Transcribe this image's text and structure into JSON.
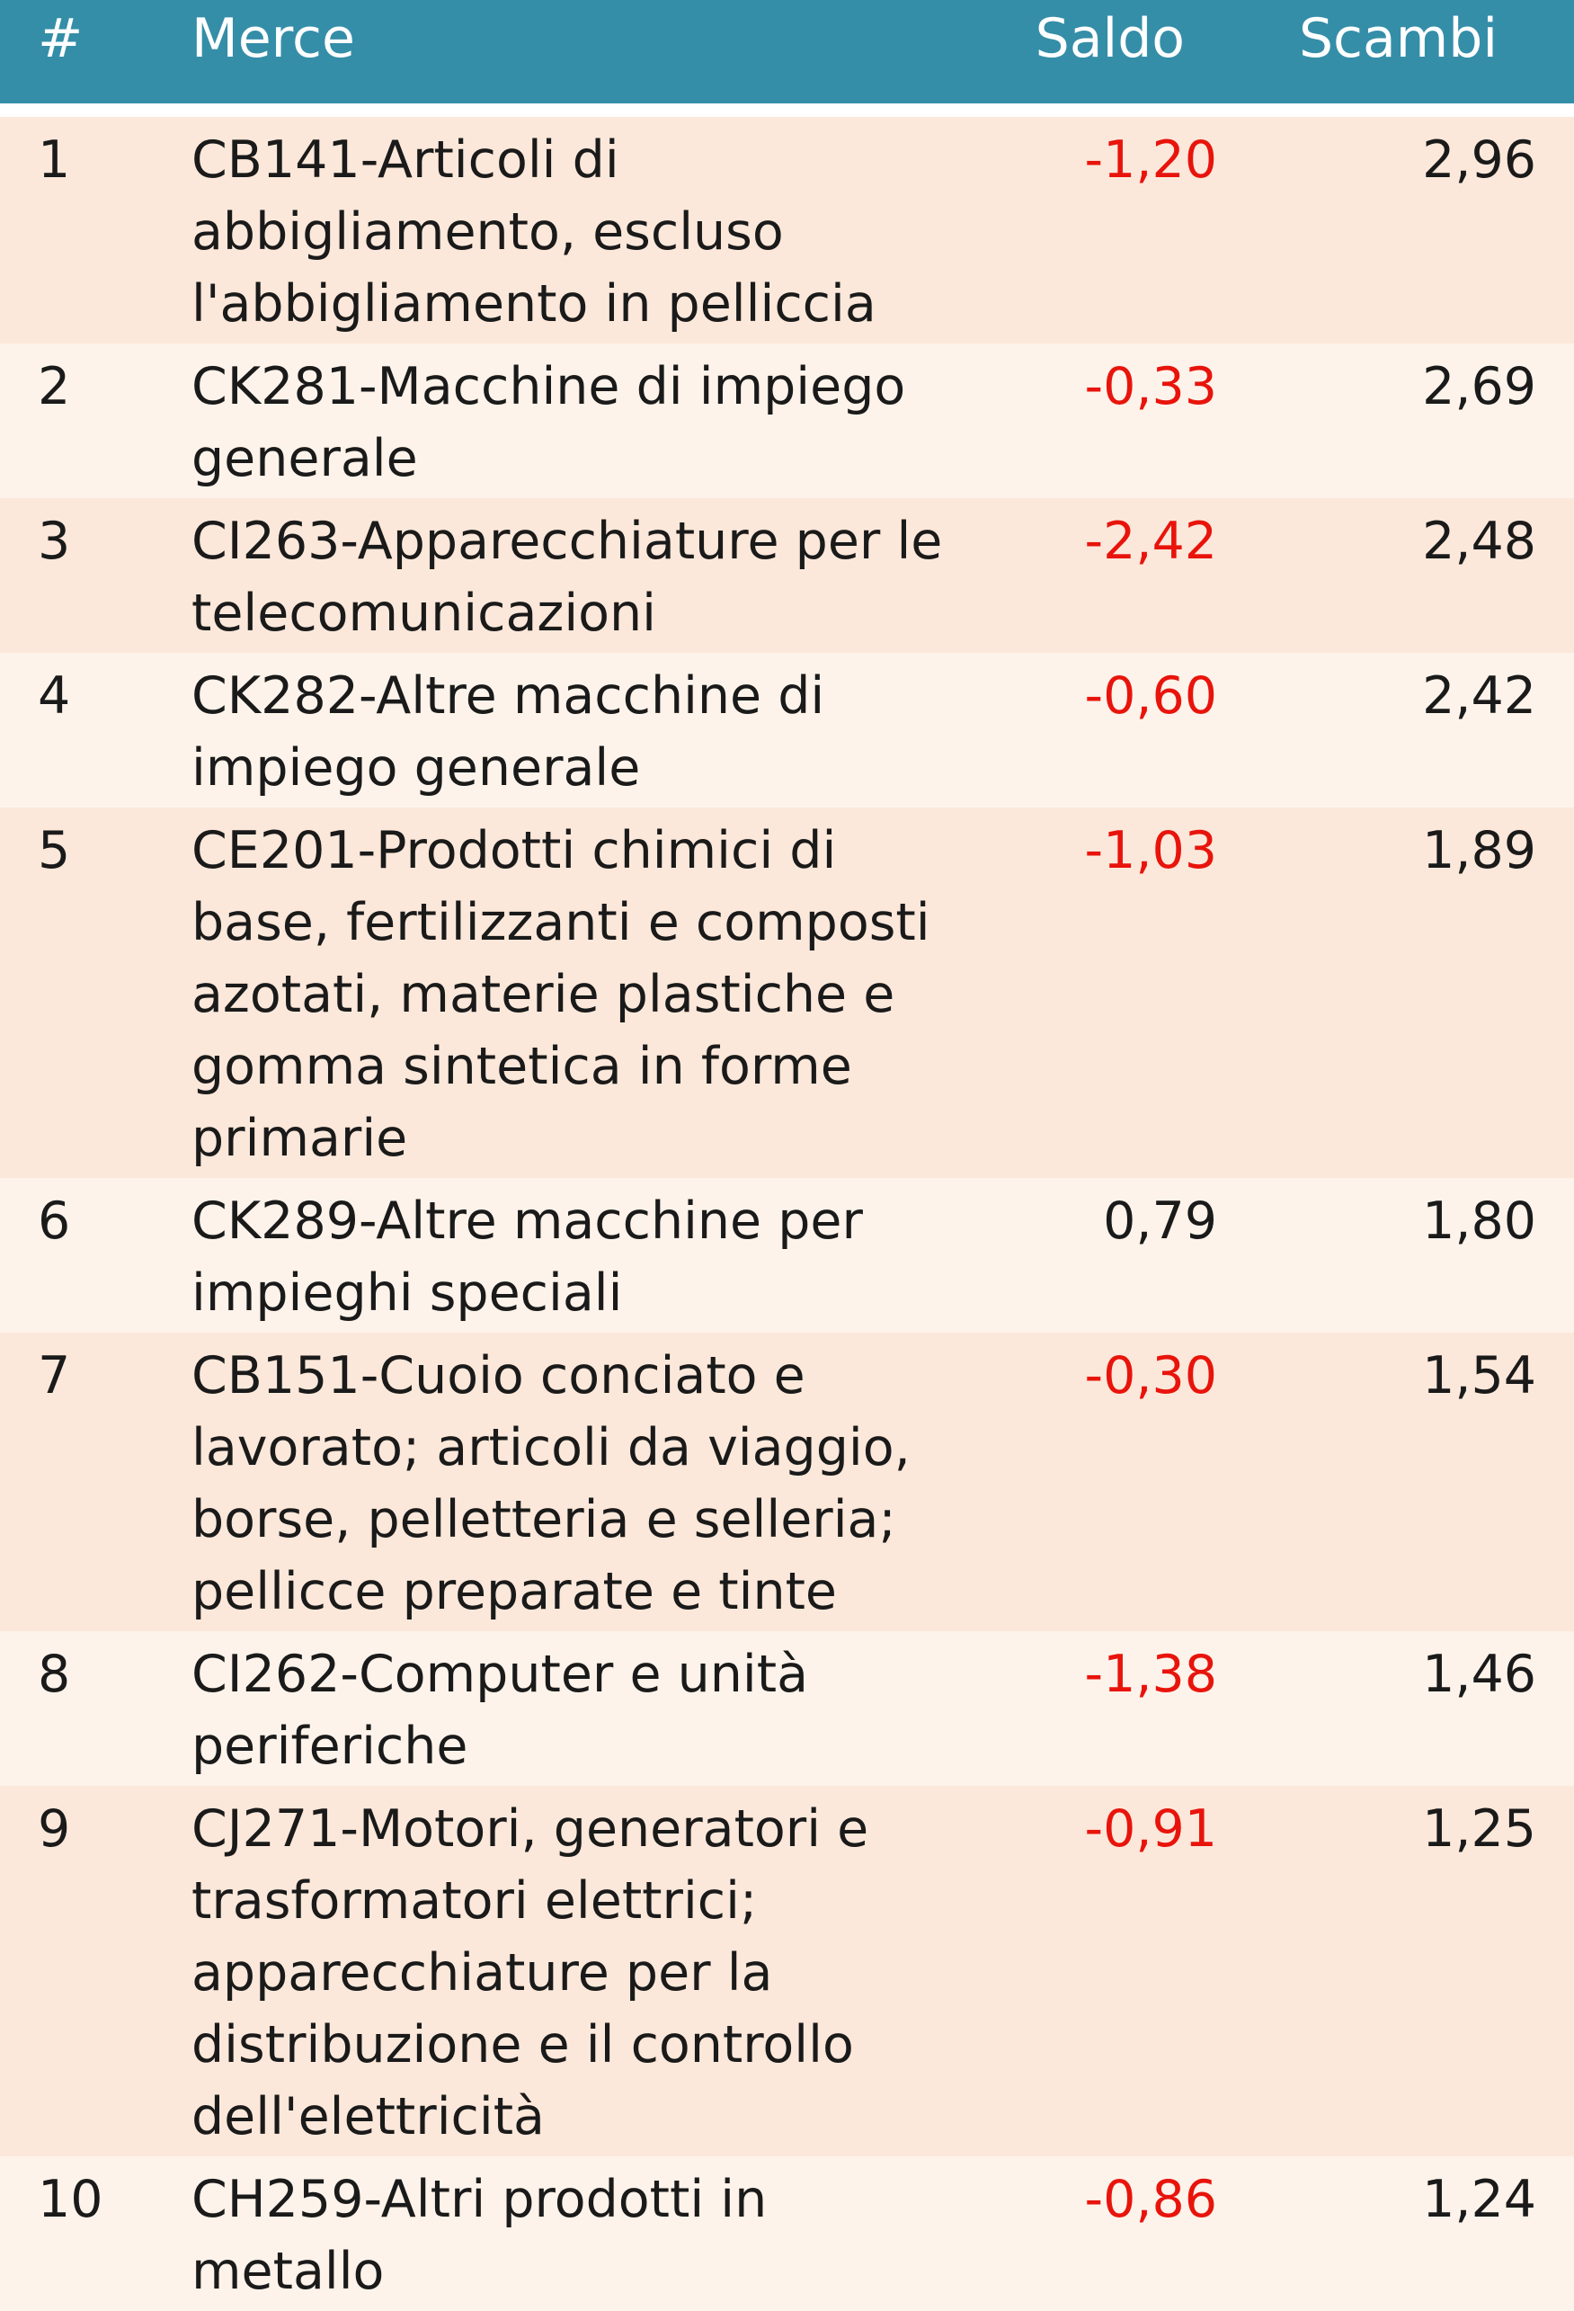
{
  "colors": {
    "header_bg": "#358ea8",
    "header_text": "#ffffff",
    "separator": "#ffffff",
    "row_odd": "#fce8da",
    "row_even": "#fdf3ea",
    "negative": "#e8140c"
  },
  "header": {
    "num": "#",
    "merce": "Merce",
    "saldo": "Saldo",
    "scambi": "Scambi"
  },
  "rows": [
    {
      "num": "1",
      "merce": "CB141-Articoli di abbigliamento, escluso l'abbigliamento in pelliccia",
      "saldo": "-1,20",
      "scambi": "2,96"
    },
    {
      "num": "2",
      "merce": "CK281-Macchine di impiego generale",
      "saldo": "-0,33",
      "scambi": "2,69"
    },
    {
      "num": "3",
      "merce": "CI263-Apparecchiature per le telecomunicazioni",
      "saldo": "-2,42",
      "scambi": "2,48"
    },
    {
      "num": "4",
      "merce": "CK282-Altre macchine di impiego generale",
      "saldo": "-0,60",
      "scambi": "2,42"
    },
    {
      "num": "5",
      "merce": "CE201-Prodotti chimici di base, fertilizzanti e composti azotati, materie plastiche e gomma sintetica in forme primarie",
      "saldo": "-1,03",
      "scambi": "1,89"
    },
    {
      "num": "6",
      "merce": "CK289-Altre macchine per impieghi speciali",
      "saldo": "0,79",
      "scambi": "1,80"
    },
    {
      "num": "7",
      "merce": "CB151-Cuoio conciato e lavorato; articoli da viaggio, borse, pelletteria e selleria; pellicce preparate e tinte",
      "saldo": "-0,30",
      "scambi": "1,54"
    },
    {
      "num": "8",
      "merce": "CI262-Computer e unità periferiche",
      "saldo": "-1,38",
      "scambi": "1,46"
    },
    {
      "num": "9",
      "merce": "CJ271-Motori, generatori e trasformatori elettrici; apparecchiature per la distribuzione e il controllo dell'elettricità",
      "saldo": "-0,91",
      "scambi": "1,25"
    },
    {
      "num": "10",
      "merce": "CH259-Altri prodotti in metallo",
      "saldo": "-0,86",
      "scambi": "1,24"
    }
  ]
}
